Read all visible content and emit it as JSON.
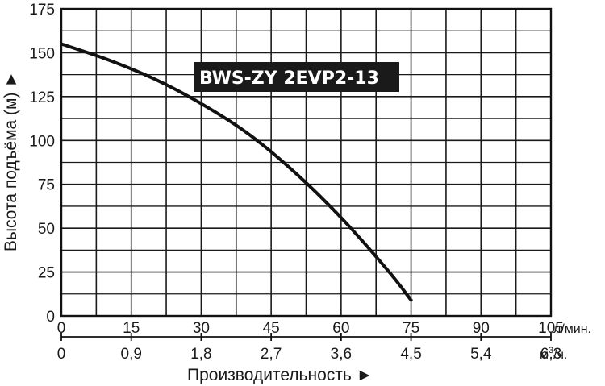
{
  "chart_data": {
    "type": "line",
    "title": "",
    "ylabel": "Высота подъёма (м) ►",
    "xlabel": "Производительность ►",
    "ylim": [
      0,
      175
    ],
    "y_ticks": [
      0,
      25,
      50,
      75,
      100,
      125,
      150,
      175
    ],
    "x_axis_primary": {
      "unit": "л/мин.",
      "range": [
        0,
        105
      ],
      "ticks": [
        "0",
        "15",
        "30",
        "45",
        "60",
        "75",
        "90",
        "105"
      ]
    },
    "x_axis_secondary": {
      "unit": "м³/ч.",
      "unit_base": "м",
      "unit_sup": "3",
      "unit_suffix": "/ч.",
      "ticks": [
        "0",
        "0,9",
        "1,8",
        "2,7",
        "3,6",
        "4,5",
        "5,4",
        "6,3"
      ]
    },
    "grid": true,
    "series": [
      {
        "name": "BWS-ZY 2EVP2-13",
        "x": [
          0,
          10,
          20,
          30,
          40,
          50,
          60,
          70,
          75
        ],
        "y": [
          155,
          146,
          135,
          121,
          104,
          82,
          56,
          26,
          9
        ]
      }
    ],
    "colors": {
      "line": "#111111",
      "label_bg": "#1a1a1a",
      "label_text": "#ffffff",
      "grid": "#1a1a1a"
    }
  }
}
